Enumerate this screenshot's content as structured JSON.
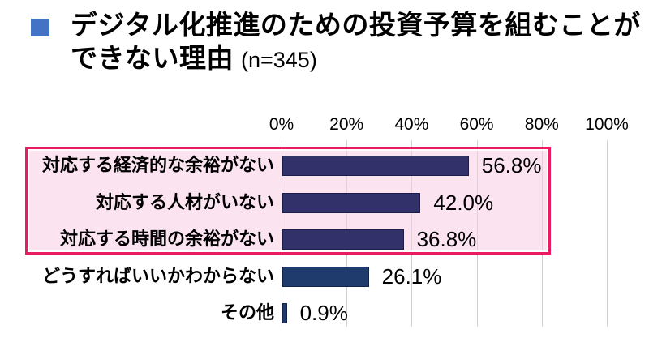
{
  "title": {
    "line1": "デジタル化推進のための投資予算を組むことが",
    "line2": "できない理由",
    "sample_size": "(n=345)",
    "bullet_color": "#4472C4"
  },
  "chart_data": {
    "type": "bar",
    "orientation": "horizontal",
    "title": "デジタル化推進のための投資予算を組むことができない理由 (n=345)",
    "categories": [
      "対応する経済的な余裕がない",
      "対応する人材がいない",
      "対応する時間の余裕がない",
      "どうすればいいかわからない",
      "その他"
    ],
    "values": [
      56.8,
      42.0,
      36.8,
      26.1,
      0.9
    ],
    "value_labels": [
      "56.8%",
      "42.0%",
      "36.8%",
      "26.1%",
      "0.9%"
    ],
    "x_axis_ticks": [
      "0%",
      "20%",
      "40%",
      "60%",
      "80%",
      "100%"
    ],
    "xlim": [
      0,
      100
    ],
    "grid": true,
    "gridline_color": "#cfcfcf",
    "bar_color": "#1f3a6c",
    "bar_color_highlighted": "#333169",
    "highlighted_rows": [
      0,
      1,
      2
    ],
    "highlight_box": {
      "fill": "rgba(248,205,227,0.55)",
      "border": "#ea1a63"
    }
  }
}
